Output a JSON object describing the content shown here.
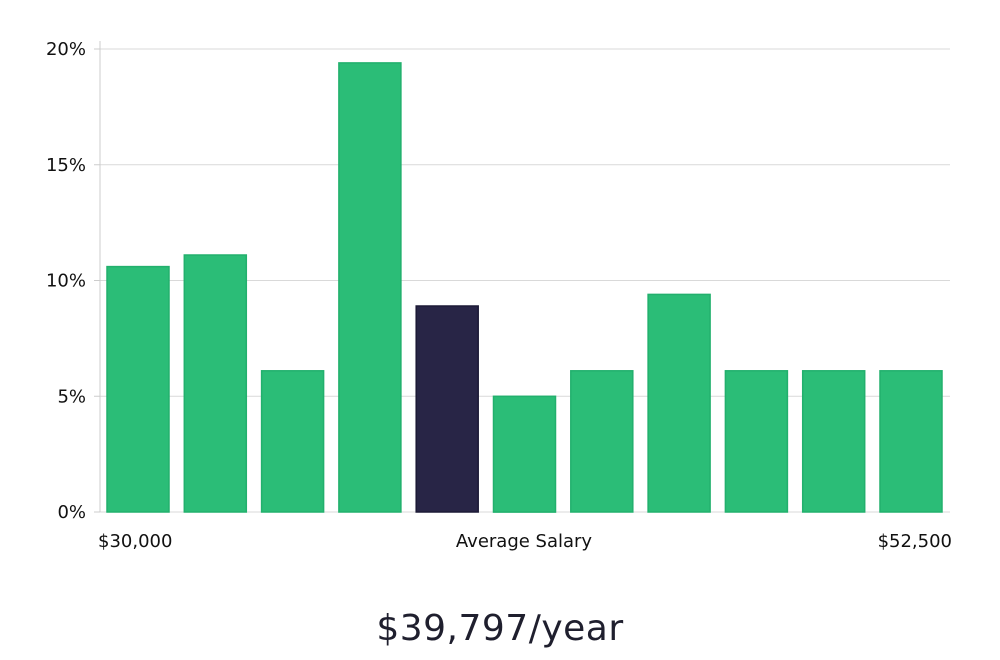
{
  "chart_data": {
    "type": "bar",
    "title": "",
    "xlabel": "Average Salary",
    "ylabel": "",
    "x_range_labels": {
      "start": "$30,000",
      "end": "$52,500"
    },
    "y_ticks": [
      {
        "value": 0,
        "label": "0%"
      },
      {
        "value": 5,
        "label": "5%"
      },
      {
        "value": 10,
        "label": "10%"
      },
      {
        "value": 15,
        "label": "15%"
      },
      {
        "value": 20,
        "label": "20%"
      }
    ],
    "ylim": [
      0,
      20
    ],
    "grid": true,
    "values": [
      10.6,
      11.1,
      6.1,
      19.4,
      8.9,
      5.0,
      6.1,
      9.4,
      6.1,
      6.1,
      6.1
    ],
    "highlight_index": 4,
    "colors": {
      "bar": "#2bbd77",
      "bar_border": "#22b06d",
      "highlight": "#282546",
      "grid": "#d9d9d9",
      "axis": "#cccccc"
    }
  },
  "summary": {
    "salary": "$39,797/year"
  }
}
